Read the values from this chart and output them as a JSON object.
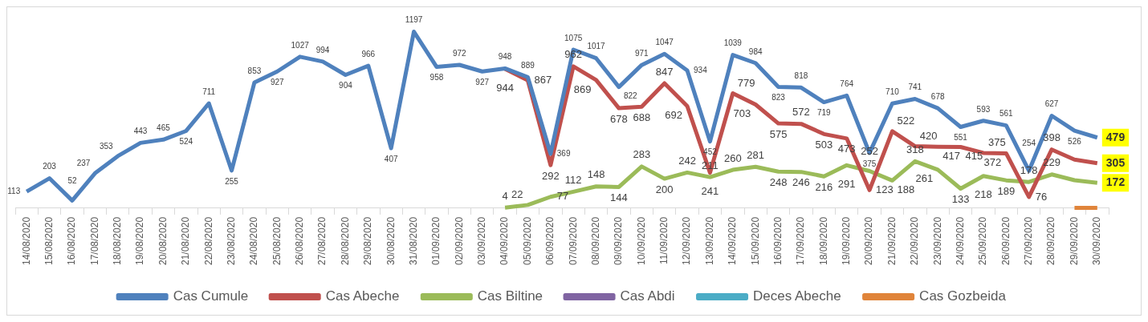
{
  "chart_data": {
    "type": "line",
    "categories": [
      "14/08/2020",
      "15/08/2020",
      "16/08/2020",
      "17/08/2020",
      "18/08/2020",
      "19/08/2020",
      "20/08/2020",
      "21/08/2020",
      "22/08/2020",
      "23/08/2020",
      "24/08/2020",
      "25/08/2020",
      "26/08/2020",
      "27/08/2020",
      "28/08/2020",
      "29/08/2020",
      "30/08/2020",
      "31/08/2020",
      "01/09/2020",
      "02/09/2020",
      "03/09/2020",
      "04/09/2020",
      "05/09/2020",
      "06/09/2020",
      "07/09/2020",
      "08/09/2020",
      "09/09/2020",
      "10/09/2020",
      "11/09/2020",
      "12/09/2020",
      "13/09/2020",
      "14/09/2020",
      "15/09/2020",
      "16/09/2020",
      "17/09/2020",
      "18/09/2020",
      "19/09/2020",
      "20/09/2020",
      "21/09/2020",
      "22/09/2020",
      "23/09/2020",
      "24/09/2020",
      "25/09/2020",
      "26/09/2020",
      "27/09/2020",
      "28/09/2020",
      "29/09/2020",
      "30/09/2020"
    ],
    "series": [
      {
        "name": "Cas Cumule",
        "color": "#4f81bd",
        "values": [
          113,
          203,
          52,
          237,
          353,
          443,
          465,
          524,
          711,
          255,
          853,
          927,
          1027,
          994,
          904,
          966,
          407,
          1197,
          958,
          972,
          927,
          948,
          889,
          369,
          1075,
          1017,
          822,
          971,
          1047,
          934,
          452,
          1039,
          984,
          823,
          818,
          719,
          764,
          375,
          710,
          741,
          678,
          551,
          593,
          561,
          254,
          627,
          526,
          479
        ],
        "value_labels": [
          "113",
          "203",
          "52",
          "237",
          "353",
          "443",
          "465",
          "524",
          "711",
          "255",
          "853",
          "927",
          "1027",
          "994",
          "904",
          "966",
          "407",
          "1197",
          "958",
          "972",
          "927",
          "948",
          "889",
          "369",
          "1075",
          "1017",
          "822",
          "971",
          "1047",
          "934",
          "452",
          "1039",
          "984",
          "823",
          "818",
          "719",
          "764",
          "375",
          "710",
          "741",
          "678",
          "551",
          "593",
          "561",
          "254",
          "627",
          "526",
          "479"
        ]
      },
      {
        "name": "Cas Abeche",
        "color": "#c0504d",
        "values": [
          null,
          null,
          null,
          null,
          null,
          null,
          null,
          null,
          null,
          null,
          null,
          null,
          null,
          null,
          null,
          null,
          null,
          null,
          null,
          null,
          null,
          944,
          867,
          292,
          962,
          869,
          678,
          688,
          847,
          692,
          241,
          779,
          703,
          575,
          572,
          503,
          473,
          123,
          522,
          420,
          417,
          415,
          375,
          372,
          76,
          398,
          330,
          305
        ],
        "value_labels": [
          null,
          null,
          null,
          null,
          null,
          null,
          null,
          null,
          null,
          null,
          null,
          null,
          null,
          null,
          null,
          null,
          null,
          null,
          null,
          null,
          null,
          "944",
          "867",
          "292",
          "962",
          "869",
          "678",
          "688",
          "847",
          "692",
          "241",
          "779",
          "703",
          "575",
          "572",
          "503",
          "473",
          "123",
          "522",
          "420",
          "417",
          "415",
          "375",
          "372",
          "76",
          "398",
          null,
          "305"
        ]
      },
      {
        "name": "Cas Biltine",
        "color": "#9bbb59",
        "values": [
          null,
          null,
          null,
          null,
          null,
          null,
          null,
          null,
          null,
          null,
          null,
          null,
          null,
          null,
          null,
          null,
          null,
          null,
          null,
          null,
          null,
          4,
          22,
          77,
          112,
          148,
          144,
          283,
          200,
          242,
          211,
          260,
          281,
          248,
          246,
          216,
          291,
          252,
          188,
          318,
          261,
          133,
          218,
          189,
          178,
          229,
          190,
          172
        ],
        "value_labels": [
          null,
          null,
          null,
          null,
          null,
          null,
          null,
          null,
          null,
          null,
          null,
          null,
          null,
          null,
          null,
          null,
          null,
          null,
          null,
          null,
          null,
          "4",
          "22",
          "77",
          "112",
          "148",
          "144",
          "283",
          "200",
          "242",
          "211",
          "260",
          "281",
          "248",
          "246",
          "216",
          "291",
          "252",
          "188",
          "318",
          "261",
          "133",
          "218",
          "189",
          "178",
          "229",
          null,
          "172"
        ]
      },
      {
        "name": "Cas Abdi",
        "color": "#8064a2",
        "values": [
          null,
          null,
          null,
          null,
          null,
          null,
          null,
          null,
          null,
          null,
          null,
          null,
          null,
          null,
          null,
          null,
          null,
          null,
          null,
          null,
          null,
          null,
          null,
          null,
          null,
          null,
          null,
          null,
          null,
          null,
          null,
          null,
          null,
          null,
          null,
          null,
          null,
          null,
          null,
          null,
          null,
          null,
          null,
          null,
          null,
          null,
          null,
          null
        ]
      },
      {
        "name": "Deces Abeche",
        "color": "#4bacc6",
        "values": [
          null,
          null,
          null,
          null,
          null,
          null,
          null,
          null,
          null,
          null,
          null,
          null,
          null,
          null,
          null,
          null,
          null,
          null,
          null,
          null,
          null,
          null,
          null,
          null,
          null,
          null,
          null,
          null,
          null,
          null,
          null,
          null,
          null,
          null,
          null,
          null,
          null,
          null,
          null,
          null,
          null,
          null,
          null,
          null,
          null,
          null,
          null,
          null
        ]
      },
      {
        "name": "Cas Gozbeida",
        "color": "#e0843a",
        "values": [
          null,
          null,
          null,
          null,
          null,
          null,
          null,
          null,
          null,
          null,
          null,
          null,
          null,
          null,
          null,
          null,
          null,
          null,
          null,
          null,
          null,
          null,
          null,
          null,
          null,
          null,
          null,
          null,
          null,
          null,
          null,
          null,
          null,
          null,
          null,
          null,
          null,
          null,
          null,
          null,
          null,
          null,
          null,
          null,
          null,
          null,
          2,
          2
        ]
      }
    ],
    "legend": "bottom",
    "grid": false,
    "marker": "none",
    "line_style": "solid"
  }
}
